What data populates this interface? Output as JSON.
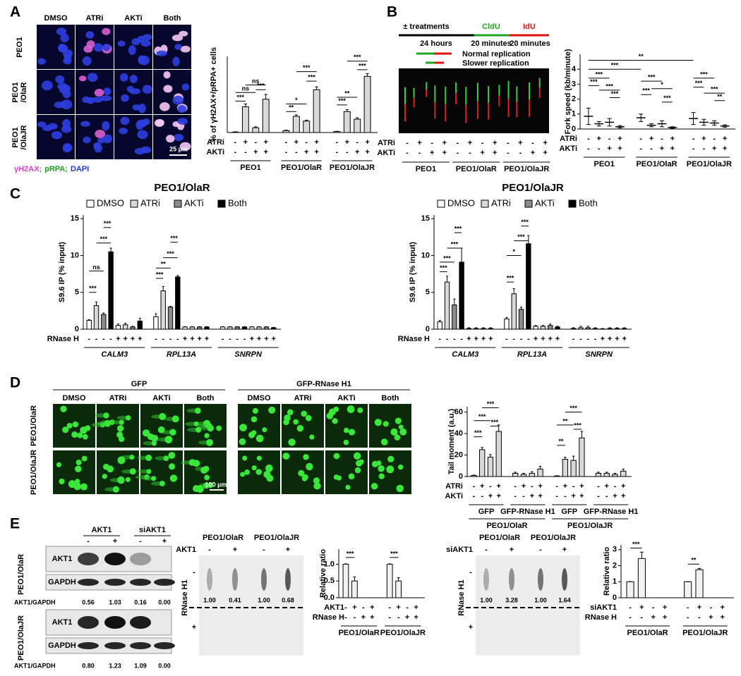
{
  "panel_letters": [
    "A",
    "B",
    "C",
    "D",
    "E"
  ],
  "A": {
    "columns": [
      "DMSO",
      "ATRi",
      "AKTi",
      "Both"
    ],
    "rows": [
      [
        "PEO1"
      ],
      [
        "PEO1",
        "/OlaR"
      ],
      [
        "PEO1",
        "/OlaJR"
      ]
    ],
    "scale_bar": "25 µm",
    "stain_legend": [
      {
        "text": "γH2AX;",
        "color": "#e040d8"
      },
      {
        "text": "pRPA;",
        "color": "#1f9e1f"
      },
      {
        "text": "DAPI",
        "color": "#2233ee"
      }
    ],
    "chart": {
      "type": "bar",
      "y_label": "% of γH2AX+/pRPA+ cells",
      "ylim": [
        0,
        80
      ],
      "bar_colors": [
        "#d9d9d9"
      ],
      "groups": [
        {
          "label": "PEO1",
          "values": [
            0.5,
            27,
            5,
            35
          ],
          "errors": [
            0.3,
            3,
            1,
            5
          ]
        },
        {
          "label": "PEO1/OlaR",
          "values": [
            2,
            17,
            12,
            45
          ],
          "errors": [
            0.5,
            1.5,
            1,
            3
          ]
        },
        {
          "label": "PEO1/OlaJR",
          "values": [
            1,
            22,
            14,
            59
          ],
          "errors": [
            0.3,
            2,
            1.5,
            3
          ]
        }
      ],
      "condition_rows": [
        {
          "label": "ATRi",
          "signs": [
            "-",
            "+",
            "-",
            "+",
            "-",
            "+",
            "-",
            "+",
            "-",
            "+",
            "-",
            "+"
          ]
        },
        {
          "label": "AKTi",
          "signs": [
            "-",
            "-",
            "+",
            "+",
            "-",
            "-",
            "+",
            "+",
            "-",
            "-",
            "+",
            "+"
          ]
        }
      ],
      "significance": [
        "***",
        "ns",
        "ns",
        "***",
        "**",
        "*",
        "***",
        "***",
        "***",
        "**",
        "***",
        "***"
      ]
    }
  },
  "B": {
    "schematic": {
      "steps": [
        {
          "text": "± treatments",
          "color": "#000000"
        },
        {
          "text": "CldU",
          "color": "#1fa51f"
        },
        {
          "text": "IdU",
          "color": "#e01010"
        }
      ],
      "durations": [
        "24 hours",
        "20 minutes",
        "20 minutes"
      ],
      "legend": [
        "Normal replication",
        "Slower replication"
      ]
    },
    "fiber": {
      "condition_rows": [
        {
          "label": "ATRi",
          "signs": [
            "-",
            "+",
            "-",
            "+",
            "-",
            "+",
            "-",
            "+",
            "-",
            "+",
            "-",
            "+"
          ]
        },
        {
          "label": "AKTi",
          "signs": [
            "-",
            "-",
            "+",
            "+",
            "-",
            "-",
            "+",
            "+",
            "-",
            "-",
            "+",
            "+"
          ]
        }
      ],
      "groups": [
        "PEO1",
        "PEO1/OlaR",
        "PEO1/OlaJR"
      ]
    },
    "chart": {
      "type": "dot",
      "y_label": "Fork speed (kb/minute)",
      "ylim": [
        0,
        5
      ],
      "yticks": [
        0,
        1,
        2,
        3,
        4
      ],
      "bar_colors": [
        "#000000"
      ],
      "groups": [
        {
          "label": "PEO1",
          "values": [
            0.85,
            0.35,
            0.45,
            0.15
          ],
          "errors": [
            0.55,
            0.15,
            0.25,
            0.08
          ]
        },
        {
          "label": "PEO1/OlaR",
          "values": [
            0.75,
            0.25,
            0.35,
            0.1
          ],
          "errors": [
            0.25,
            0.1,
            0.2,
            0.05
          ]
        },
        {
          "label": "PEO1/OlaJR",
          "values": [
            0.7,
            0.45,
            0.4,
            0.2
          ],
          "errors": [
            0.4,
            0.2,
            0.15,
            0.08
          ]
        }
      ],
      "condition_rows": [
        {
          "label": "ATRi",
          "signs": [
            "-",
            "+",
            "-",
            "+",
            "-",
            "+",
            "-",
            "+",
            "-",
            "+",
            "-",
            "+"
          ]
        },
        {
          "label": "AKTi",
          "signs": [
            "-",
            "-",
            "+",
            "+",
            "-",
            "-",
            "+",
            "+",
            "-",
            "-",
            "+",
            "+"
          ]
        }
      ],
      "significance": [
        "**",
        "***",
        "***",
        "***",
        "***",
        "***",
        "***",
        "*",
        "***",
        "***",
        "***",
        "***",
        "***",
        "**"
      ]
    }
  },
  "C": {
    "charts": [
      {
        "type": "bar",
        "title": "PEO1/OlaR",
        "y_label": "S9.6 IP (% input)",
        "ylim": [
          0,
          15.5
        ],
        "yticks": [
          0,
          5,
          10,
          15
        ],
        "legend": [
          "DMSO",
          "ATRi",
          "AKTi",
          "Both"
        ],
        "bar_colors": [
          "#ffffff",
          "#d9d9d9",
          "#8c8c8c",
          "#000000"
        ],
        "groups": [
          {
            "label": "CALM3",
            "values": [
              1.2,
              3.2,
              2.0,
              10.5,
              0.5,
              0.6,
              0.3,
              1.1
            ],
            "errors": [
              0.1,
              0.5,
              0.2,
              0.5,
              0.2,
              0.2,
              0.1,
              0.4
            ]
          },
          {
            "label": "RPL13A",
            "values": [
              1.7,
              5.2,
              3.0,
              7.1,
              0.3,
              0.3,
              0.3,
              0.3
            ],
            "errors": [
              0.4,
              0.6,
              0.1,
              0.2,
              0.05,
              0.05,
              0.05,
              0.05
            ]
          },
          {
            "label": "SNRPN",
            "values": [
              0.3,
              0.3,
              0.3,
              0.3,
              0.3,
              0.3,
              0.3,
              0.2
            ],
            "errors": [
              0.05,
              0.05,
              0.05,
              0.05,
              0.05,
              0.05,
              0.05,
              0.05
            ]
          }
        ],
        "condition_rows": [
          {
            "label": "RNase H",
            "signs": [
              "-",
              "-",
              "-",
              "-",
              "+",
              "+",
              "+",
              "+",
              "-",
              "-",
              "-",
              "-",
              "+",
              "+",
              "+",
              "+",
              "-",
              "-",
              "-",
              "-",
              "+",
              "+",
              "+",
              "+"
            ]
          }
        ],
        "significance": [
          "***",
          "ns",
          "***",
          "***",
          "***",
          "**",
          "***",
          "***"
        ]
      },
      {
        "type": "bar",
        "title": "PEO1/OlaJR",
        "y_label": "S9.6 IP (% input)",
        "ylim": [
          0,
          15.5
        ],
        "yticks": [
          0,
          5,
          10,
          15
        ],
        "legend": [
          "DMSO",
          "ATRi",
          "AKTi",
          "Both"
        ],
        "bar_colors": [
          "#ffffff",
          "#d9d9d9",
          "#8c8c8c",
          "#000000"
        ],
        "groups": [
          {
            "label": "CALM3",
            "values": [
              1.0,
              6.4,
              3.3,
              9.1,
              0.1,
              0.1,
              0.1,
              0.1
            ],
            "errors": [
              0.2,
              0.8,
              0.8,
              1.9,
              0.1,
              0.1,
              0.1,
              0.1
            ]
          },
          {
            "label": "RPL13A",
            "values": [
              1.4,
              4.8,
              2.7,
              11.6,
              0.4,
              0.4,
              0.5,
              0.3
            ],
            "errors": [
              0.2,
              0.7,
              0.3,
              1.1,
              0.1,
              0.1,
              0.2,
              0.1
            ]
          },
          {
            "label": "SNRPN",
            "values": [
              0.1,
              0.2,
              0.2,
              0.1,
              0.05,
              0.1,
              0.1,
              0.1
            ],
            "errors": [
              0.1,
              0.2,
              0.2,
              0.1,
              0.05,
              0.1,
              0.1,
              0.1
            ]
          }
        ],
        "condition_rows": [
          {
            "label": "RNase H",
            "signs": [
              "-",
              "-",
              "-",
              "-",
              "+",
              "+",
              "+",
              "+",
              "-",
              "-",
              "-",
              "-",
              "+",
              "+",
              "+",
              "+",
              "-",
              "-",
              "-",
              "-",
              "+",
              "+",
              "+",
              "+"
            ]
          }
        ],
        "significance": [
          "***",
          "***",
          "***",
          "***",
          "***",
          "*",
          "***",
          "***"
        ]
      }
    ]
  },
  "D": {
    "image_groups": [
      {
        "label": "GFP",
        "columns": [
          "DMSO",
          "ATRi",
          "AKTi",
          "Both"
        ]
      },
      {
        "label": "GFP-RNase H1",
        "columns": [
          "DMSO",
          "ATRi",
          "AKTi",
          "Both"
        ]
      }
    ],
    "rows": [
      "PEO1/OlaR",
      "PEO1/OlaJR"
    ],
    "scale_bar": "100 µm",
    "chart": {
      "type": "bar",
      "y_label": "Tail moment (a.u.)",
      "ylim": [
        0,
        65
      ],
      "yticks": [
        0,
        20,
        40,
        60
      ],
      "bar_colors": [
        "#d9d9d9"
      ],
      "groups": [
        {
          "label": "GFP",
          "values": [
            1,
            25,
            18,
            42
          ],
          "errors": [
            0.3,
            2,
            2.5,
            6
          ]
        },
        {
          "label": "GFP-RNase H1",
          "values": [
            3,
            2,
            3,
            7
          ],
          "errors": [
            1,
            1,
            1.5,
            2.5
          ]
        },
        {
          "label": "GFP",
          "values": [
            0.5,
            16,
            15,
            36
          ],
          "errors": [
            0.3,
            2,
            4,
            6
          ]
        },
        {
          "label": "GFP-RNase H1",
          "values": [
            3,
            3,
            2,
            5
          ],
          "errors": [
            1,
            1,
            1,
            2
          ]
        }
      ],
      "supergroups": [
        "PEO1/OlaR",
        "PEO1/OlaJR"
      ],
      "condition_rows": [
        {
          "label": "ATRi",
          "signs": [
            "-",
            "+",
            "-",
            "+",
            "-",
            "+",
            "-",
            "+",
            "-",
            "+",
            "-",
            "+",
            "-",
            "+",
            "-",
            "+"
          ]
        },
        {
          "label": "AKTi",
          "signs": [
            "-",
            "-",
            "+",
            "+",
            "-",
            "-",
            "+",
            "+",
            "-",
            "-",
            "+",
            "+",
            "-",
            "-",
            "+",
            "+"
          ]
        }
      ],
      "significance": [
        "***",
        "***",
        "***",
        "***",
        "**",
        "**",
        "***",
        "***"
      ]
    }
  },
  "E": {
    "blot": {
      "header": [
        "AKT1",
        "siAKT1"
      ],
      "signs": [
        "-",
        "+",
        "-",
        "+"
      ],
      "sections": [
        {
          "label": "PEO1/OlaR",
          "bands": [
            "AKT1",
            "GAPDH"
          ],
          "ratio_label": "AKT1/GAPDH",
          "ratios": [
            "0.56",
            "1.03",
            "0.16",
            "0.00"
          ]
        },
        {
          "label": "PEO1/OlaJR",
          "bands": [
            "AKT1",
            "GAPDH"
          ],
          "ratio_label": "AKT1/GAPDH",
          "ratios": [
            "0.80",
            "1.23",
            "1.09",
            "0.00"
          ]
        }
      ]
    },
    "dot_blots": [
      {
        "headers": [
          "PEO1/OlaR",
          "PEO1/OlaJR"
        ],
        "treatment": {
          "label": "AKT1",
          "signs": [
            "-",
            "+",
            "-",
            "+"
          ]
        },
        "side_label": "RNase H1",
        "side_signs": [
          "-",
          "+"
        ],
        "ratios": [
          "1.00",
          "0.41",
          "1.00",
          "0.68"
        ]
      },
      {
        "headers": [
          "PEO1/OlaR",
          "PEO1/OlaJR"
        ],
        "treatment": {
          "label": "siAKT1",
          "signs": [
            "-",
            "+",
            "-",
            "+"
          ]
        },
        "side_label": "RNase H1",
        "side_signs": [
          "-",
          "+"
        ],
        "ratios": [
          "1.00",
          "3.28",
          "1.00",
          "1.64"
        ]
      }
    ],
    "charts": [
      {
        "type": "bar",
        "y_label": "Relative ratio",
        "ylim": [
          0,
          1.45
        ],
        "yticks": [
          {
            "value": 0,
            "label": "0.0"
          },
          {
            "value": 0.5,
            "label": "0.5"
          },
          {
            "value": 1,
            "label": "1.0"
          }
        ],
        "bar_colors": [
          "#f2f2f2"
        ],
        "groups": [
          {
            "label": "PEO1/OlaR",
            "values": [
              1,
              0.5,
              0,
              0
            ],
            "errors": [
              0.01,
              0.12,
              0,
              0
            ]
          },
          {
            "label": "PEO1/OlaJR",
            "values": [
              1,
              0.5,
              0,
              0
            ],
            "errors": [
              0.01,
              0.1,
              0,
              0
            ]
          }
        ],
        "condition_rows": [
          {
            "label": "AKT1",
            "signs": [
              "-",
              "+",
              "-",
              "+",
              "-",
              "+",
              "-",
              "+"
            ]
          },
          {
            "label": "RNase H",
            "signs": [
              "-",
              "-",
              "+",
              "+",
              "-",
              "-",
              "+",
              "+"
            ]
          }
        ],
        "significance": [
          "***",
          "***"
        ]
      },
      {
        "type": "bar",
        "y_label": "Relative ratio",
        "ylim": [
          0,
          3.3
        ],
        "yticks": [
          0,
          1,
          2,
          3
        ],
        "bar_colors": [
          "#f2f2f2"
        ],
        "groups": [
          {
            "label": "PEO1/OlaR",
            "values": [
              1,
              2.45,
              0,
              0
            ],
            "errors": [
              0.01,
              0.4,
              0,
              0
            ]
          },
          {
            "label": "PEO1/OlaJR",
            "values": [
              1,
              1.75,
              0,
              0
            ],
            "errors": [
              0.01,
              0.08,
              0,
              0
            ]
          }
        ],
        "condition_rows": [
          {
            "label": "siAKT1",
            "signs": [
              "-",
              "+",
              "-",
              "+",
              "-",
              "+",
              "-",
              "+"
            ]
          },
          {
            "label": "RNase H",
            "signs": [
              "-",
              "-",
              "+",
              "+",
              "-",
              "-",
              "+",
              "+"
            ]
          }
        ],
        "significance": [
          "***",
          "**"
        ]
      }
    ]
  }
}
